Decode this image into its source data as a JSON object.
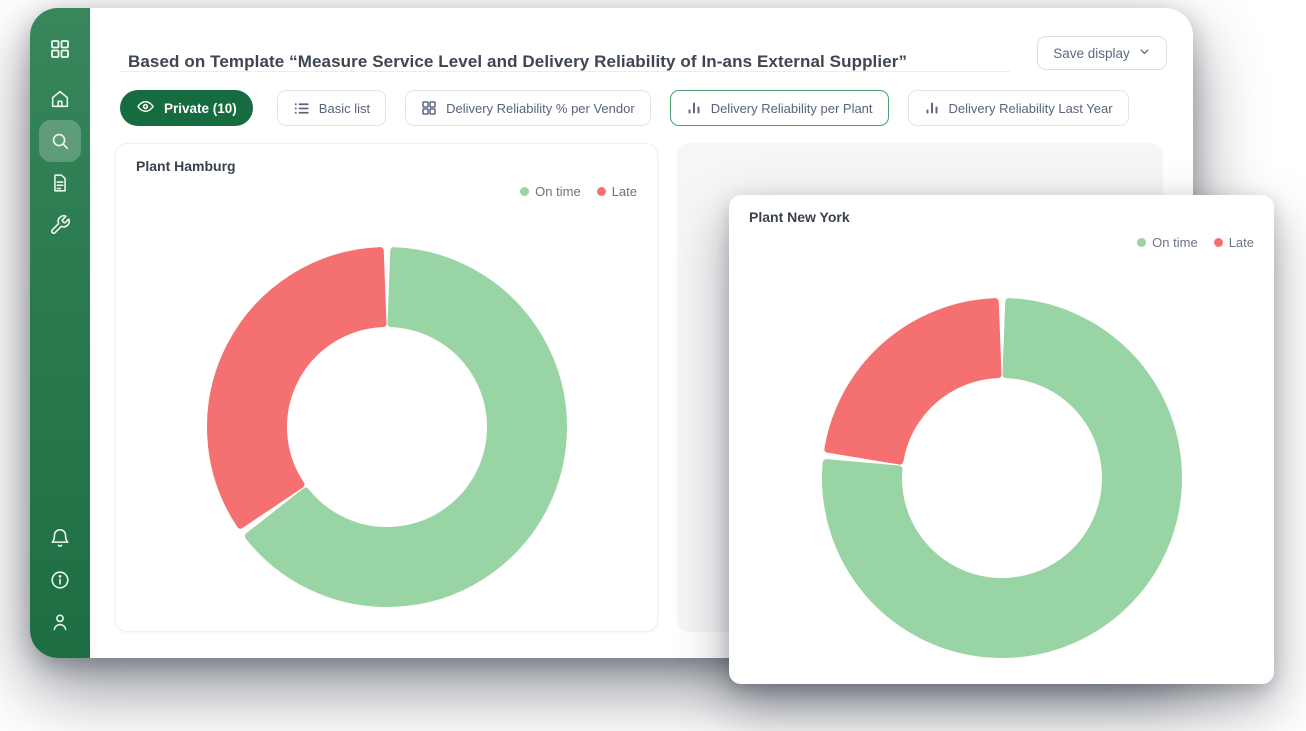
{
  "header": {
    "title": "Based on Template “Measure Service Level and Delivery Reliability of In-ans External Supplier”",
    "save_display_label": "Save display"
  },
  "filters": [
    {
      "label": "Private (10)",
      "icon": "eye-icon",
      "variant": "active-pill"
    },
    {
      "label": "Basic list",
      "icon": "list-icon",
      "variant": "default"
    },
    {
      "label": "Delivery Reliability % per Vendor",
      "icon": "grid-icon",
      "variant": "default"
    },
    {
      "label": "Delivery Reliability per Plant",
      "icon": "bar-chart-icon",
      "variant": "selected"
    },
    {
      "label": "Delivery Reliability Last Year",
      "icon": "bar-chart-icon",
      "variant": "default"
    }
  ],
  "sidebar": {
    "active_item": "search",
    "icons_top": [
      "grid",
      "home",
      "search",
      "file",
      "wrench"
    ],
    "icons_bottom": [
      "bell",
      "info",
      "user"
    ]
  },
  "colors": {
    "sidebar_green_top": "#38875c",
    "sidebar_green_bottom": "#1e6e44",
    "active_pill_green": "#176b40",
    "selected_button_border": "#4d9e6e",
    "on_time_green": "#99d4a4",
    "late_red": "#f57070",
    "legend_text": "#6a7484"
  },
  "chart_data": [
    {
      "type": "pie",
      "variant": "donut",
      "title": "Plant Hamburg",
      "labels": [
        "On time",
        "Late"
      ],
      "values": [
        65,
        35
      ],
      "unit": "percent",
      "colors": [
        "#99d4a4",
        "#f57070"
      ],
      "legend_position": "top-right",
      "start_angle": "top",
      "direction": "clockwise"
    },
    {
      "type": "pie",
      "variant": "donut",
      "title": "Plant New York",
      "labels": [
        "On time",
        "Late"
      ],
      "values": [
        77,
        23
      ],
      "unit": "percent",
      "colors": [
        "#99d4a4",
        "#f57070"
      ],
      "legend_position": "top-right",
      "start_angle": "top",
      "direction": "clockwise"
    }
  ]
}
